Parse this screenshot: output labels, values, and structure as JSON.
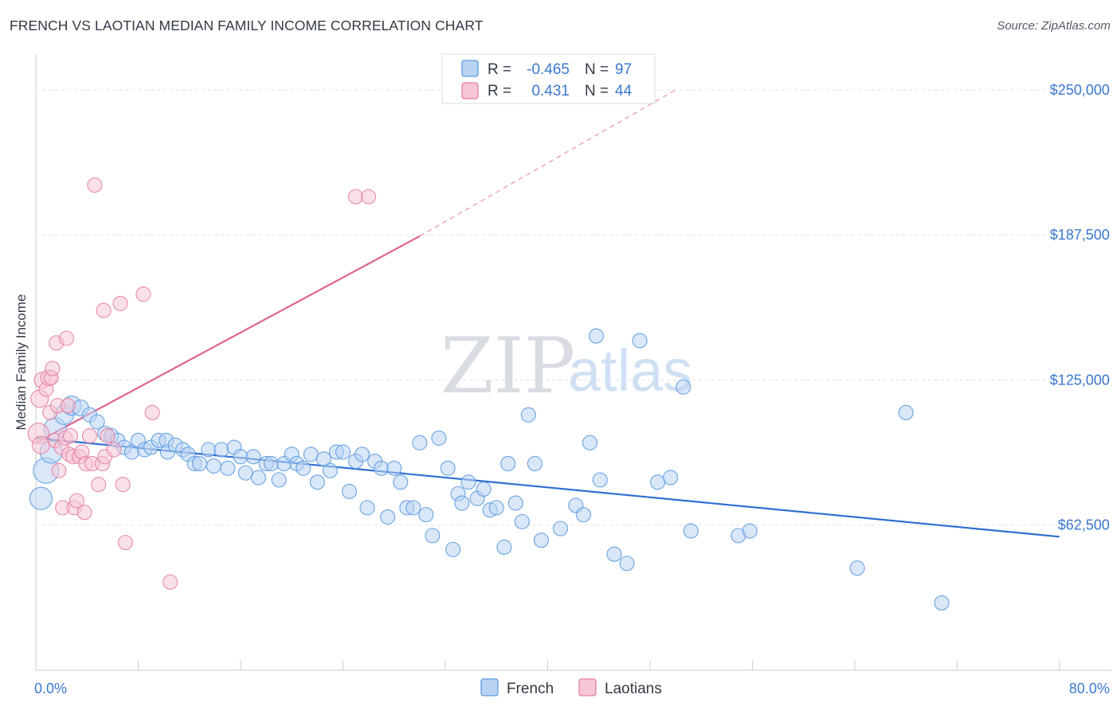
{
  "title": "FRENCH VS LAOTIAN MEDIAN FAMILY INCOME CORRELATION CHART",
  "source": "Source: ZipAtlas.com",
  "colors": {
    "french": "#5b9ae0",
    "french_fill": "#b9d3f2",
    "french_line": "#2e6fd1",
    "laotians": "#e77fa0",
    "laotians_fill": "#f6c6d6",
    "laotians_line": "#e0648e",
    "axis_label": "#3b78d0",
    "grid": "#dde0e5"
  },
  "legend": {
    "row1": {
      "r_label": "R =",
      "r_value": "-0.465",
      "n_label": "N =",
      "n_value": "97"
    },
    "row2": {
      "r_label": "R =",
      "r_value": "0.431",
      "n_label": "N =",
      "n_value": "44"
    }
  },
  "watermark": {
    "zip": "ZIP",
    "atlas": "atlas"
  },
  "chart_data": {
    "type": "scatter",
    "title": "FRENCH VS LAOTIAN MEDIAN FAMILY INCOME CORRELATION CHART",
    "xlabel": "",
    "ylabel": "Median Family Income",
    "xlim": [
      0,
      80
    ],
    "ylim": [
      0,
      262000
    ],
    "x_tick_labels": [
      "0.0%",
      "80.0%"
    ],
    "y_ticks": [
      62500,
      125000,
      187500,
      250000
    ],
    "y_tick_labels": [
      "$62,500",
      "$125,000",
      "$187,500",
      "$250,000"
    ],
    "grid": true,
    "legend_position": "top-center",
    "series": [
      {
        "name": "French",
        "trend": {
          "x0": 0,
          "y0": 100000,
          "x1": 80,
          "y1": 57500
        },
        "points": [
          [
            0.4,
            74000,
            14
          ],
          [
            0.8,
            86000,
            16
          ],
          [
            1.2,
            94000,
            14
          ],
          [
            1.5,
            104000,
            14
          ],
          [
            2.2,
            110000,
            12
          ],
          [
            2.8,
            114000,
            12
          ],
          [
            3.5,
            113000,
            10
          ],
          [
            4.2,
            110000,
            9
          ],
          [
            4.8,
            107000,
            9
          ],
          [
            5.4,
            102000,
            9
          ],
          [
            5.9,
            101000,
            9
          ],
          [
            6.4,
            99000,
            9
          ],
          [
            6.9,
            96000,
            9
          ],
          [
            7.5,
            94000,
            9
          ],
          [
            8.0,
            99000,
            9
          ],
          [
            8.5,
            95000,
            9
          ],
          [
            9.0,
            96000,
            9
          ],
          [
            9.6,
            99000,
            9
          ],
          [
            10.2,
            99000,
            9
          ],
          [
            10.3,
            94000,
            9
          ],
          [
            10.9,
            97000,
            9
          ],
          [
            11.5,
            95000,
            9
          ],
          [
            11.9,
            93000,
            9
          ],
          [
            12.4,
            89000,
            9
          ],
          [
            12.8,
            89000,
            9
          ],
          [
            13.5,
            95000,
            9
          ],
          [
            13.9,
            88000,
            9
          ],
          [
            14.5,
            95000,
            9
          ],
          [
            15.0,
            87000,
            9
          ],
          [
            15.5,
            96000,
            9
          ],
          [
            16.0,
            92000,
            9
          ],
          [
            16.4,
            85000,
            9
          ],
          [
            17.0,
            92000,
            9
          ],
          [
            17.4,
            83000,
            9
          ],
          [
            18.0,
            89000,
            9
          ],
          [
            18.4,
            89000,
            9
          ],
          [
            19.0,
            82000,
            9
          ],
          [
            19.4,
            89000,
            9
          ],
          [
            20.0,
            93000,
            9
          ],
          [
            20.4,
            89000,
            9
          ],
          [
            20.9,
            87000,
            9
          ],
          [
            21.5,
            93000,
            9
          ],
          [
            22.0,
            81000,
            9
          ],
          [
            22.5,
            91000,
            9
          ],
          [
            23.0,
            86000,
            9
          ],
          [
            23.5,
            94000,
            9
          ],
          [
            24.0,
            94000,
            9
          ],
          [
            24.5,
            77000,
            9
          ],
          [
            25.0,
            90000,
            9
          ],
          [
            25.5,
            93000,
            9
          ],
          [
            25.9,
            70000,
            9
          ],
          [
            26.5,
            90000,
            9
          ],
          [
            27.0,
            87000,
            9
          ],
          [
            27.5,
            66000,
            9
          ],
          [
            28.0,
            87000,
            9
          ],
          [
            28.5,
            81000,
            9
          ],
          [
            29.0,
            70000,
            9
          ],
          [
            29.5,
            70000,
            9
          ],
          [
            30.0,
            98000,
            9
          ],
          [
            30.5,
            67000,
            9
          ],
          [
            31.0,
            58000,
            9
          ],
          [
            31.5,
            100000,
            9
          ],
          [
            32.2,
            87000,
            9
          ],
          [
            32.6,
            52000,
            9
          ],
          [
            33.0,
            76000,
            9
          ],
          [
            33.3,
            72000,
            9
          ],
          [
            33.8,
            81000,
            9
          ],
          [
            34.5,
            74000,
            9
          ],
          [
            35.0,
            78000,
            9
          ],
          [
            35.5,
            69000,
            9
          ],
          [
            36.0,
            70000,
            9
          ],
          [
            36.6,
            53000,
            9
          ],
          [
            36.9,
            89000,
            9
          ],
          [
            37.5,
            72000,
            9
          ],
          [
            38.0,
            64000,
            9
          ],
          [
            38.5,
            110000,
            9
          ],
          [
            39.0,
            89000,
            9
          ],
          [
            39.5,
            56000,
            9
          ],
          [
            41.0,
            61000,
            9
          ],
          [
            42.2,
            71000,
            9
          ],
          [
            42.8,
            67000,
            9
          ],
          [
            43.3,
            98000,
            9
          ],
          [
            43.8,
            144000,
            9
          ],
          [
            44.1,
            82000,
            9
          ],
          [
            45.2,
            50000,
            9
          ],
          [
            46.2,
            46000,
            9
          ],
          [
            47.2,
            142000,
            9
          ],
          [
            48.6,
            81000,
            9
          ],
          [
            49.6,
            83000,
            9
          ],
          [
            50.6,
            122000,
            9
          ],
          [
            51.2,
            60000,
            9
          ],
          [
            54.9,
            58000,
            9
          ],
          [
            55.8,
            60000,
            9
          ],
          [
            64.2,
            44000,
            9
          ],
          [
            68.0,
            111000,
            9
          ],
          [
            70.8,
            29000,
            9
          ]
        ]
      },
      {
        "name": "Laotians",
        "trend": {
          "x0": 0,
          "y0": 98000,
          "x1": 30,
          "y1": 187000,
          "dashed_to": {
            "x": 50,
            "y": 250000
          }
        },
        "points": [
          [
            0.2,
            102000,
            13
          ],
          [
            0.3,
            117000,
            11
          ],
          [
            0.4,
            97000,
            11
          ],
          [
            0.5,
            125000,
            10
          ],
          [
            0.8,
            121000,
            9
          ],
          [
            1.0,
            126000,
            10
          ],
          [
            1.1,
            111000,
            9
          ],
          [
            1.2,
            126000,
            9
          ],
          [
            1.3,
            130000,
            9
          ],
          [
            1.5,
            99000,
            9
          ],
          [
            1.6,
            141000,
            9
          ],
          [
            1.7,
            114000,
            9
          ],
          [
            1.8,
            86000,
            9
          ],
          [
            2.0,
            96000,
            9
          ],
          [
            2.1,
            70000,
            9
          ],
          [
            2.3,
            100000,
            9
          ],
          [
            2.4,
            143000,
            9
          ],
          [
            2.5,
            114000,
            9
          ],
          [
            2.6,
            93000,
            9
          ],
          [
            2.7,
            101000,
            9
          ],
          [
            2.9,
            92000,
            9
          ],
          [
            3.0,
            70000,
            9
          ],
          [
            3.2,
            73000,
            9
          ],
          [
            3.4,
            92000,
            9
          ],
          [
            3.6,
            94000,
            9
          ],
          [
            3.8,
            68000,
            9
          ],
          [
            3.9,
            89000,
            9
          ],
          [
            4.2,
            101000,
            9
          ],
          [
            4.4,
            89000,
            9
          ],
          [
            4.6,
            209000,
            9
          ],
          [
            4.9,
            80000,
            9
          ],
          [
            5.2,
            89000,
            9
          ],
          [
            5.3,
            155000,
            9
          ],
          [
            5.4,
            92000,
            9
          ],
          [
            5.6,
            101000,
            9
          ],
          [
            6.1,
            95000,
            9
          ],
          [
            6.6,
            158000,
            9
          ],
          [
            6.8,
            80000,
            9
          ],
          [
            7.0,
            55000,
            9
          ],
          [
            8.4,
            162000,
            9
          ],
          [
            9.1,
            111000,
            9
          ],
          [
            10.5,
            38000,
            9
          ],
          [
            25.0,
            204000,
            9
          ],
          [
            26.0,
            204000,
            9
          ]
        ]
      }
    ]
  },
  "bottom_legend": {
    "french": "French",
    "laotians": "Laotians"
  }
}
